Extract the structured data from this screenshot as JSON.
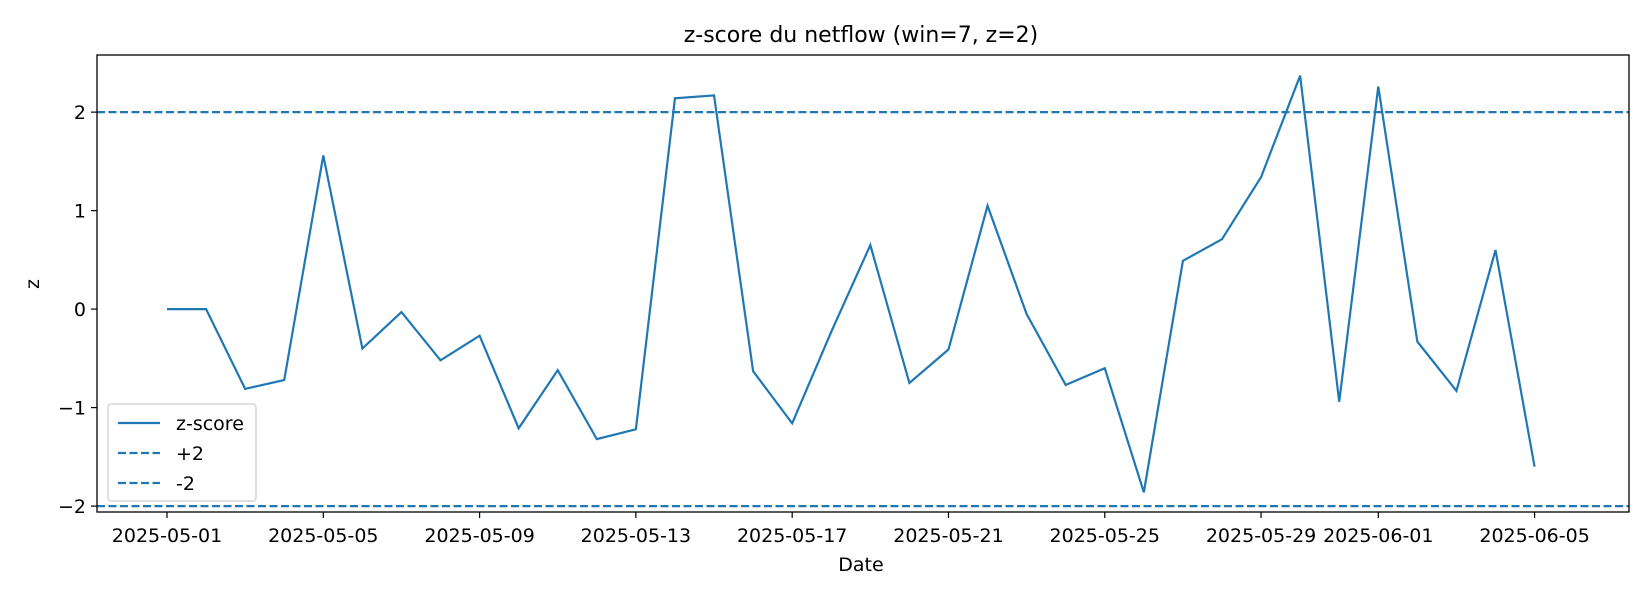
{
  "chart_data": {
    "type": "line",
    "title": "z-score du netflow (win=7, z=2)",
    "xlabel": "Date",
    "ylabel": "z",
    "ylim": [
      -2.06,
      2.58
    ],
    "xlim": [
      "2025-04-29T05:00",
      "2025-06-07T10:00"
    ],
    "y_ticks": [
      {
        "value": 2,
        "label": "2"
      },
      {
        "value": 1,
        "label": "1"
      },
      {
        "value": 0,
        "label": "0"
      },
      {
        "value": -1,
        "label": "−1"
      },
      {
        "value": -2,
        "label": "−2"
      }
    ],
    "x_ticks": [
      "2025-05-01",
      "2025-05-05",
      "2025-05-09",
      "2025-05-13",
      "2025-05-17",
      "2025-05-21",
      "2025-05-25",
      "2025-05-29",
      "2025-06-01",
      "2025-06-05"
    ],
    "grid": false,
    "legend_position": "lower-left",
    "series": [
      {
        "name": "z-score",
        "color": "#1f77b4",
        "style": "solid",
        "points": [
          {
            "x": "2025-05-01",
            "y": 0.0
          },
          {
            "x": "2025-05-02",
            "y": 0.0
          },
          {
            "x": "2025-05-03",
            "y": -0.81
          },
          {
            "x": "2025-05-04",
            "y": -0.72
          },
          {
            "x": "2025-05-05",
            "y": 1.56
          },
          {
            "x": "2025-05-06",
            "y": -0.4
          },
          {
            "x": "2025-05-07",
            "y": -0.03
          },
          {
            "x": "2025-05-08",
            "y": -0.52
          },
          {
            "x": "2025-05-09",
            "y": -0.27
          },
          {
            "x": "2025-05-10",
            "y": -1.21
          },
          {
            "x": "2025-05-11",
            "y": -0.62
          },
          {
            "x": "2025-05-12",
            "y": -1.32
          },
          {
            "x": "2025-05-13",
            "y": -1.22
          },
          {
            "x": "2025-05-14",
            "y": 2.14
          },
          {
            "x": "2025-05-15",
            "y": 2.17
          },
          {
            "x": "2025-05-16",
            "y": -0.63
          },
          {
            "x": "2025-05-17",
            "y": -1.16
          },
          {
            "x": "2025-05-18",
            "y": -0.23
          },
          {
            "x": "2025-05-19",
            "y": 0.65
          },
          {
            "x": "2025-05-20",
            "y": -0.75
          },
          {
            "x": "2025-05-21",
            "y": -0.41
          },
          {
            "x": "2025-05-22",
            "y": 1.05
          },
          {
            "x": "2025-05-23",
            "y": -0.05
          },
          {
            "x": "2025-05-24",
            "y": -0.77
          },
          {
            "x": "2025-05-25",
            "y": -0.6
          },
          {
            "x": "2025-05-26",
            "y": -1.86
          },
          {
            "x": "2025-05-27",
            "y": 0.49
          },
          {
            "x": "2025-05-28",
            "y": 0.71
          },
          {
            "x": "2025-05-29",
            "y": 1.34
          },
          {
            "x": "2025-05-30",
            "y": 2.37
          },
          {
            "x": "2025-05-31",
            "y": -0.94
          },
          {
            "x": "2025-06-01",
            "y": 2.26
          },
          {
            "x": "2025-06-02",
            "y": -0.33
          },
          {
            "x": "2025-06-03",
            "y": -0.83
          },
          {
            "x": "2025-06-04",
            "y": 0.6
          },
          {
            "x": "2025-06-05",
            "y": -1.6
          }
        ]
      },
      {
        "name": "+2",
        "color": "#1f77b4",
        "style": "dashed",
        "hline": 2
      },
      {
        "name": "-2",
        "color": "#1f77b4",
        "style": "dashed",
        "hline": -2
      }
    ]
  }
}
